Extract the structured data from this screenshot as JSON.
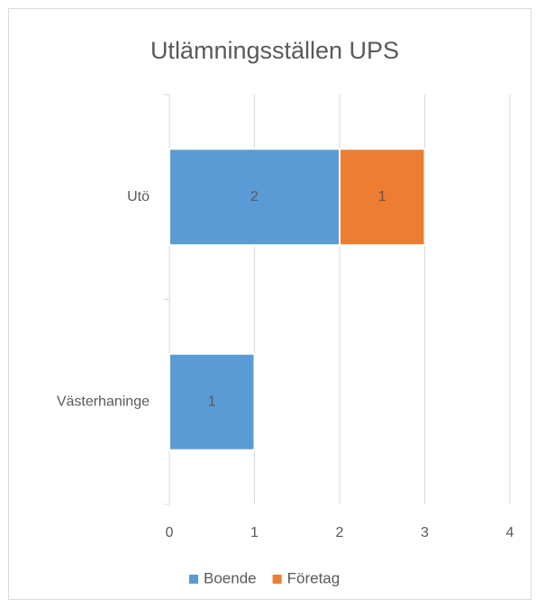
{
  "chart_data": {
    "type": "stacked_barh",
    "title": "Utlämningsställen UPS",
    "categories": [
      "Utö",
      "Västerhaninge"
    ],
    "series": [
      {
        "name": "Boende",
        "color": "#5b9bd5",
        "values": [
          2,
          1
        ]
      },
      {
        "name": "Företag",
        "color": "#ed7d31",
        "values": [
          1,
          null
        ]
      }
    ],
    "xlim": [
      0,
      4
    ],
    "xticks": [
      0,
      1,
      2,
      3,
      4
    ],
    "grid": true,
    "legend": "bottom"
  }
}
